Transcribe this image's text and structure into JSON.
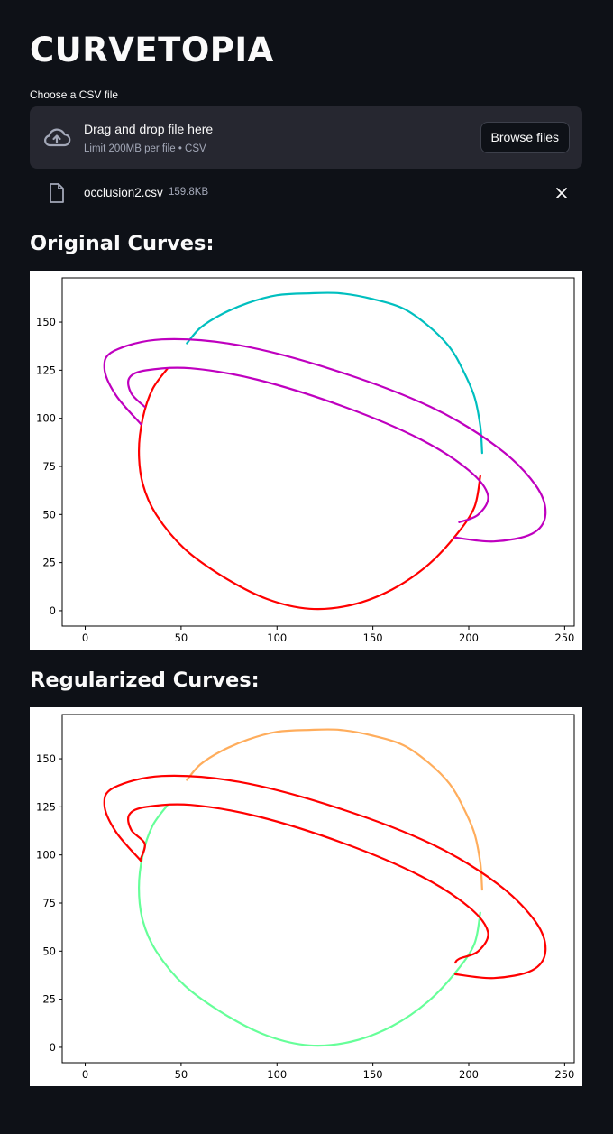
{
  "app": {
    "title": "CURVETOPIA"
  },
  "uploader": {
    "label": "Choose a CSV file",
    "drop_text": "Drag and drop file here",
    "limit_text": "Limit 200MB per file • CSV",
    "browse_label": "Browse files",
    "icon": "cloud-upload-icon"
  },
  "file": {
    "name": "occlusion2.csv",
    "size": "159.8KB",
    "icon": "file-icon",
    "remove_icon": "close-icon"
  },
  "sections": {
    "original_title": "Original Curves:",
    "regularized_title": "Regularized Curves:"
  },
  "chart_data": [
    {
      "type": "line",
      "title": "",
      "xlabel": "",
      "ylabel": "",
      "xlim": [
        -12,
        255
      ],
      "ylim": [
        -8,
        173
      ],
      "xticks": [
        0,
        50,
        100,
        150,
        200,
        250
      ],
      "yticks": [
        0,
        25,
        50,
        75,
        100,
        125,
        150
      ],
      "grid": false,
      "series": [
        {
          "color": "#00bfbf",
          "x": [
            207,
            206,
            203,
            197,
            190,
            179,
            166,
            150,
            133,
            117,
            100,
            85,
            71,
            60,
            53
          ],
          "y": [
            82,
            96,
            111,
            125,
            137,
            148,
            157,
            162,
            165,
            165,
            164,
            160,
            154,
            147,
            139
          ]
        },
        {
          "color": "#ff0000",
          "x": [
            43,
            35,
            30,
            28,
            30,
            37,
            52,
            73,
            95,
            117,
            139,
            160,
            179,
            194,
            203,
            206
          ],
          "y": [
            126,
            115,
            100,
            83,
            66,
            50,
            32,
            17,
            6,
            1,
            3,
            11,
            24,
            40,
            54,
            70
          ]
        },
        {
          "color": "#bf00bf",
          "x": [
            29,
            16,
            10,
            15,
            40,
            80,
            130,
            180,
            215,
            235,
            240,
            233,
            213,
            193
          ],
          "y": [
            97,
            112,
            126,
            135,
            141,
            138,
            125,
            106,
            85,
            65,
            50,
            40,
            36,
            38
          ]
        },
        {
          "color": "#bf00bf",
          "x": [
            31,
            24,
            23,
            32,
            55,
            90,
            135,
            175,
            200,
            210,
            205,
            195
          ],
          "y": [
            106,
            113,
            121,
            125,
            126,
            120,
            106,
            89,
            73,
            60,
            50,
            46
          ]
        }
      ]
    },
    {
      "type": "line",
      "title": "",
      "xlabel": "",
      "ylabel": "",
      "xlim": [
        -12,
        255
      ],
      "ylim": [
        -8,
        173
      ],
      "xticks": [
        0,
        50,
        100,
        150,
        200,
        250
      ],
      "yticks": [
        0,
        25,
        50,
        75,
        100,
        125,
        150
      ],
      "grid": false,
      "series": [
        {
          "color": "#ffad5c",
          "x": [
            207,
            206,
            203,
            197,
            190,
            179,
            166,
            150,
            133,
            117,
            100,
            85,
            71,
            60,
            53
          ],
          "y": [
            82,
            96,
            111,
            125,
            137,
            148,
            157,
            162,
            165,
            165,
            164,
            160,
            154,
            147,
            139
          ]
        },
        {
          "color": "#66ff99",
          "x": [
            43,
            35,
            30,
            28,
            30,
            37,
            52,
            73,
            95,
            117,
            139,
            160,
            179,
            194,
            203,
            206
          ],
          "y": [
            126,
            115,
            100,
            83,
            66,
            50,
            32,
            17,
            6,
            1,
            3,
            11,
            24,
            40,
            54,
            70
          ]
        },
        {
          "color": "#ff0000",
          "x": [
            29,
            16,
            10,
            15,
            40,
            80,
            130,
            180,
            215,
            235,
            240,
            233,
            213,
            193
          ],
          "y": [
            97,
            112,
            126,
            135,
            141,
            138,
            125,
            106,
            85,
            65,
            50,
            40,
            36,
            38
          ]
        },
        {
          "color": "#ff0000",
          "x": [
            29,
            31,
            24,
            23,
            32,
            55,
            90,
            135,
            175,
            200,
            210,
            205,
            195,
            193
          ],
          "y": [
            98,
            106,
            113,
            121,
            125,
            126,
            120,
            106,
            89,
            73,
            60,
            50,
            46,
            44
          ]
        }
      ]
    }
  ]
}
